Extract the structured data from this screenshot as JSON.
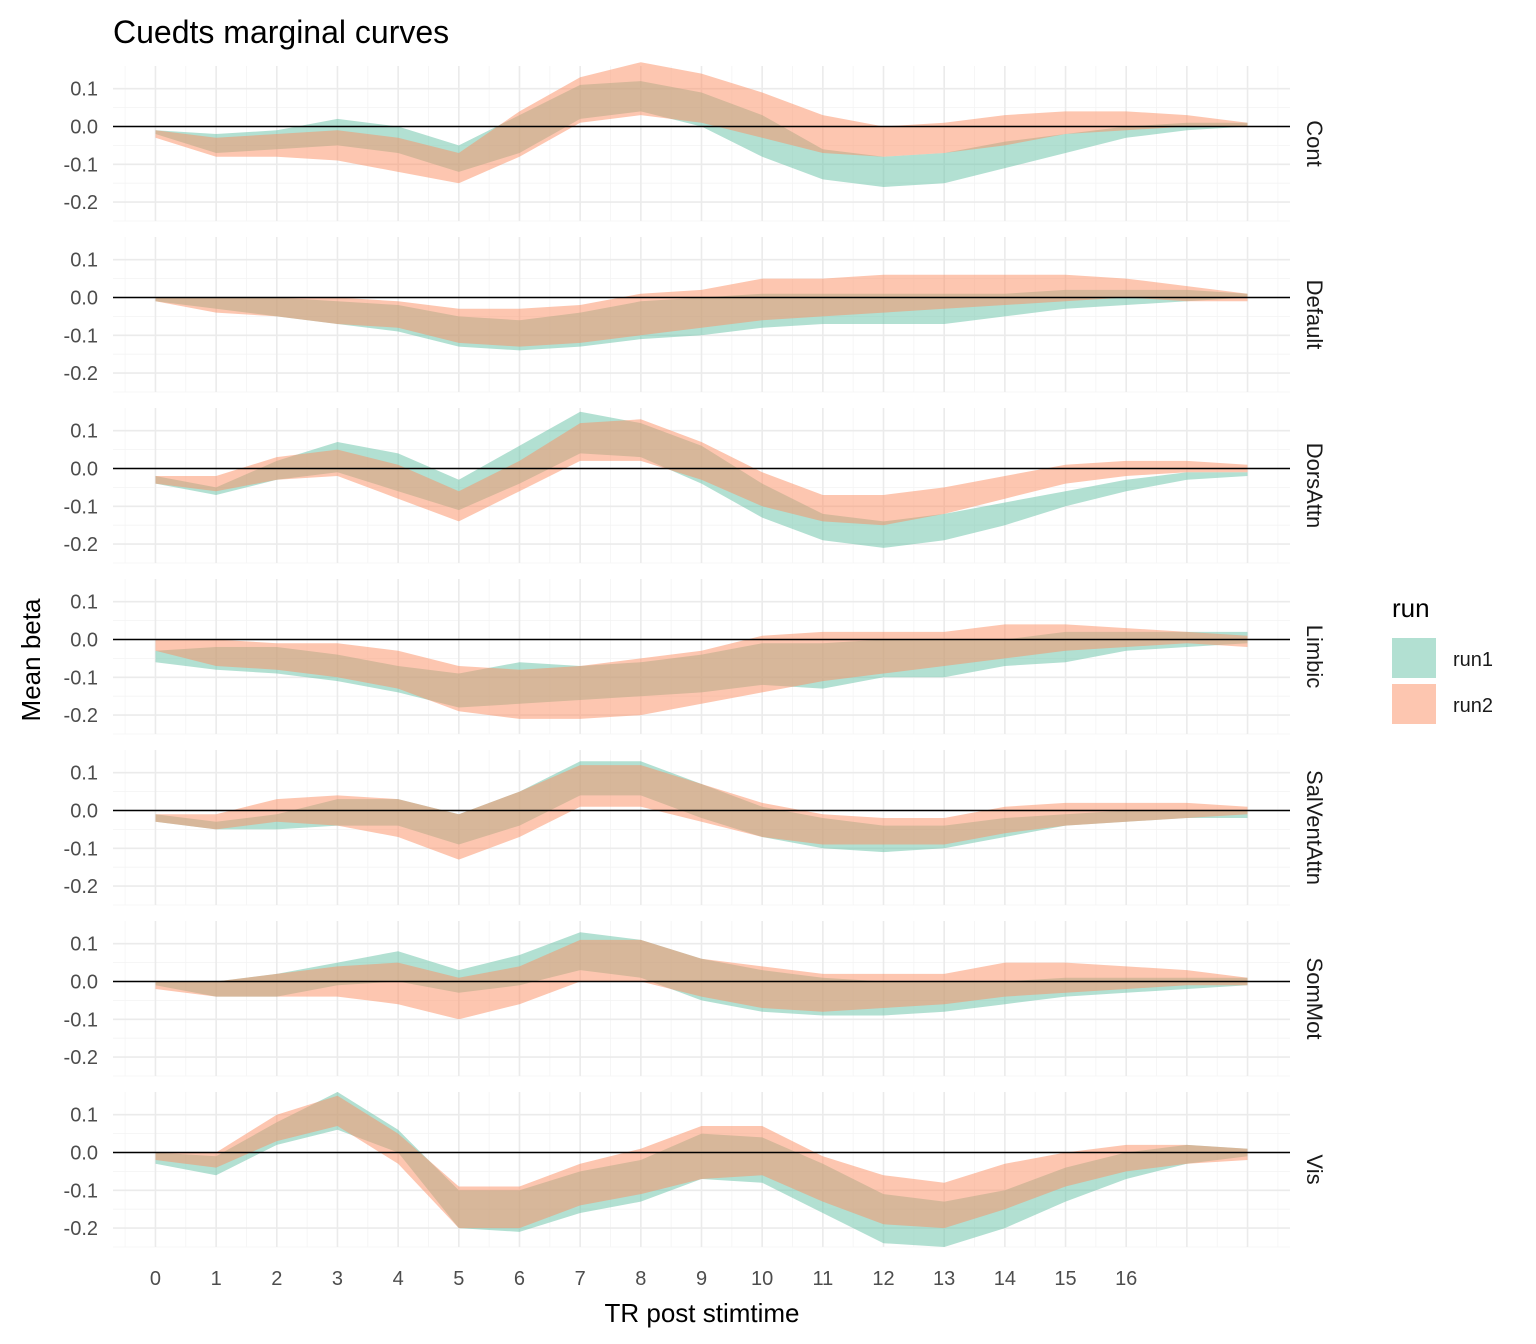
{
  "chart_data": {
    "type": "area",
    "title": "Cuedts marginal curves",
    "xlabel": "TR post stimtime",
    "ylabel": "Mean beta",
    "x": [
      0,
      1,
      2,
      3,
      4,
      5,
      6,
      7,
      8,
      9,
      10,
      11,
      12,
      13,
      14,
      15,
      16,
      17,
      18
    ],
    "x_tick_labels": [
      "0",
      "1",
      "2",
      "3",
      "4",
      "5",
      "6",
      "7",
      "8",
      "9",
      "10",
      "11",
      "12",
      "13",
      "14",
      "15",
      "16"
    ],
    "xlim": [
      -0.7,
      18.7
    ],
    "ylim": [
      -0.25,
      0.16
    ],
    "y_ticks": [
      0.1,
      0.0,
      -0.1,
      -0.2
    ],
    "y_tick_labels": [
      "0.1",
      "0.0",
      "-0.1",
      "-0.2"
    ],
    "grid": true,
    "hline": 0,
    "legend": {
      "title": "run",
      "position": "right",
      "entries": [
        {
          "name": "run1",
          "color": "#66C2A5"
        },
        {
          "name": "run2",
          "color": "#FC8D62"
        }
      ]
    },
    "fill_opacity": 0.5,
    "facets": [
      {
        "label": "Cont",
        "run1": {
          "lower": [
            -0.02,
            -0.07,
            -0.06,
            -0.05,
            -0.07,
            -0.12,
            -0.07,
            0.02,
            0.04,
            0.0,
            -0.08,
            -0.14,
            -0.16,
            -0.15,
            -0.11,
            -0.07,
            -0.03,
            -0.01,
            0.0
          ],
          "upper": [
            -0.01,
            -0.02,
            -0.01,
            0.02,
            0.0,
            -0.05,
            0.03,
            0.11,
            0.12,
            0.09,
            0.03,
            -0.06,
            -0.08,
            -0.07,
            -0.04,
            -0.02,
            0.0,
            0.01,
            0.01
          ]
        },
        "run2": {
          "lower": [
            -0.03,
            -0.08,
            -0.08,
            -0.09,
            -0.12,
            -0.15,
            -0.08,
            0.01,
            0.03,
            0.01,
            -0.03,
            -0.07,
            -0.08,
            -0.07,
            -0.05,
            -0.02,
            -0.01,
            0.0,
            0.0
          ],
          "upper": [
            -0.01,
            -0.03,
            -0.02,
            -0.01,
            -0.03,
            -0.07,
            0.04,
            0.13,
            0.17,
            0.14,
            0.09,
            0.03,
            0.0,
            0.01,
            0.03,
            0.04,
            0.04,
            0.03,
            0.01
          ]
        }
      },
      {
        "label": "Default",
        "run1": {
          "lower": [
            -0.01,
            -0.03,
            -0.05,
            -0.07,
            -0.09,
            -0.13,
            -0.14,
            -0.13,
            -0.11,
            -0.1,
            -0.08,
            -0.07,
            -0.07,
            -0.07,
            -0.05,
            -0.03,
            -0.02,
            -0.01,
            0.0
          ],
          "upper": [
            0.0,
            0.0,
            0.0,
            -0.01,
            -0.02,
            -0.05,
            -0.06,
            -0.04,
            -0.01,
            0.0,
            0.01,
            0.01,
            0.01,
            0.01,
            0.01,
            0.02,
            0.02,
            0.02,
            0.01
          ]
        },
        "run2": {
          "lower": [
            -0.01,
            -0.04,
            -0.05,
            -0.07,
            -0.08,
            -0.12,
            -0.13,
            -0.12,
            -0.1,
            -0.08,
            -0.06,
            -0.05,
            -0.04,
            -0.03,
            -0.02,
            -0.01,
            0.0,
            -0.01,
            -0.01
          ],
          "upper": [
            0.0,
            0.0,
            0.0,
            0.0,
            -0.01,
            -0.03,
            -0.03,
            -0.02,
            0.01,
            0.02,
            0.05,
            0.05,
            0.06,
            0.06,
            0.06,
            0.06,
            0.05,
            0.03,
            0.01
          ]
        }
      },
      {
        "label": "DorsAttn",
        "run1": {
          "lower": [
            -0.04,
            -0.07,
            -0.03,
            -0.01,
            -0.06,
            -0.11,
            -0.04,
            0.04,
            0.03,
            -0.04,
            -0.13,
            -0.19,
            -0.21,
            -0.19,
            -0.15,
            -0.1,
            -0.06,
            -0.03,
            -0.02
          ],
          "upper": [
            -0.02,
            -0.05,
            0.02,
            0.07,
            0.04,
            -0.03,
            0.06,
            0.15,
            0.12,
            0.06,
            -0.04,
            -0.12,
            -0.14,
            -0.12,
            -0.09,
            -0.06,
            -0.03,
            -0.01,
            -0.01
          ]
        },
        "run2": {
          "lower": [
            -0.04,
            -0.06,
            -0.03,
            -0.02,
            -0.08,
            -0.14,
            -0.06,
            0.02,
            0.02,
            -0.03,
            -0.1,
            -0.14,
            -0.15,
            -0.12,
            -0.08,
            -0.04,
            -0.02,
            -0.01,
            -0.01
          ],
          "upper": [
            -0.02,
            -0.02,
            0.03,
            0.05,
            0.01,
            -0.06,
            0.02,
            0.12,
            0.13,
            0.07,
            -0.01,
            -0.07,
            -0.07,
            -0.05,
            -0.02,
            0.01,
            0.02,
            0.02,
            0.01
          ]
        }
      },
      {
        "label": "Limbic",
        "run1": {
          "lower": [
            -0.06,
            -0.08,
            -0.09,
            -0.11,
            -0.14,
            -0.18,
            -0.17,
            -0.16,
            -0.15,
            -0.14,
            -0.12,
            -0.13,
            -0.1,
            -0.1,
            -0.07,
            -0.06,
            -0.03,
            -0.02,
            -0.01
          ],
          "upper": [
            -0.03,
            -0.02,
            -0.02,
            -0.04,
            -0.07,
            -0.09,
            -0.06,
            -0.07,
            -0.06,
            -0.04,
            -0.01,
            -0.01,
            0.0,
            0.0,
            0.0,
            0.02,
            0.02,
            0.02,
            0.02
          ]
        },
        "run2": {
          "lower": [
            -0.03,
            -0.07,
            -0.08,
            -0.1,
            -0.13,
            -0.19,
            -0.21,
            -0.21,
            -0.2,
            -0.17,
            -0.14,
            -0.11,
            -0.09,
            -0.07,
            -0.05,
            -0.03,
            -0.02,
            -0.01,
            -0.02
          ],
          "upper": [
            0.0,
            0.0,
            -0.01,
            -0.01,
            -0.03,
            -0.07,
            -0.08,
            -0.07,
            -0.05,
            -0.03,
            0.01,
            0.02,
            0.02,
            0.02,
            0.04,
            0.04,
            0.03,
            0.02,
            0.01
          ]
        }
      },
      {
        "label": "SalVentAttn",
        "run1": {
          "lower": [
            -0.03,
            -0.05,
            -0.05,
            -0.04,
            -0.04,
            -0.09,
            -0.04,
            0.04,
            0.04,
            -0.02,
            -0.07,
            -0.1,
            -0.11,
            -0.1,
            -0.07,
            -0.04,
            -0.03,
            -0.02,
            -0.02
          ],
          "upper": [
            -0.01,
            -0.03,
            -0.01,
            0.03,
            0.03,
            -0.01,
            0.05,
            0.13,
            0.13,
            0.07,
            0.01,
            -0.02,
            -0.04,
            -0.04,
            -0.02,
            -0.01,
            0.0,
            0.0,
            0.0
          ]
        },
        "run2": {
          "lower": [
            -0.03,
            -0.05,
            -0.03,
            -0.04,
            -0.07,
            -0.13,
            -0.07,
            0.01,
            0.01,
            -0.03,
            -0.07,
            -0.09,
            -0.09,
            -0.09,
            -0.06,
            -0.04,
            -0.03,
            -0.02,
            -0.01
          ],
          "upper": [
            -0.01,
            -0.01,
            0.03,
            0.04,
            0.03,
            -0.01,
            0.05,
            0.12,
            0.12,
            0.07,
            0.02,
            -0.01,
            -0.02,
            -0.02,
            0.01,
            0.02,
            0.02,
            0.02,
            0.01
          ]
        }
      },
      {
        "label": "SomMot",
        "run1": {
          "lower": [
            -0.01,
            -0.04,
            -0.04,
            -0.01,
            0.0,
            -0.03,
            -0.01,
            0.03,
            0.01,
            -0.05,
            -0.08,
            -0.09,
            -0.09,
            -0.08,
            -0.06,
            -0.04,
            -0.03,
            -0.02,
            -0.01
          ],
          "upper": [
            0.0,
            0.0,
            0.02,
            0.05,
            0.08,
            0.03,
            0.07,
            0.13,
            0.11,
            0.06,
            0.03,
            0.01,
            0.0,
            0.0,
            0.0,
            0.01,
            0.01,
            0.01,
            0.01
          ]
        },
        "run2": {
          "lower": [
            -0.02,
            -0.04,
            -0.04,
            -0.04,
            -0.06,
            -0.1,
            -0.06,
            0.0,
            0.0,
            -0.04,
            -0.07,
            -0.08,
            -0.07,
            -0.06,
            -0.04,
            -0.03,
            -0.02,
            -0.01,
            -0.01
          ],
          "upper": [
            0.0,
            0.0,
            0.02,
            0.04,
            0.05,
            0.01,
            0.04,
            0.11,
            0.11,
            0.06,
            0.04,
            0.02,
            0.02,
            0.02,
            0.05,
            0.05,
            0.04,
            0.03,
            0.01
          ]
        }
      },
      {
        "label": "Vis",
        "run1": {
          "lower": [
            -0.03,
            -0.06,
            0.02,
            0.06,
            0.0,
            -0.2,
            -0.21,
            -0.16,
            -0.13,
            -0.07,
            -0.08,
            -0.16,
            -0.24,
            -0.25,
            -0.2,
            -0.13,
            -0.07,
            -0.03,
            -0.01
          ],
          "upper": [
            0.0,
            -0.01,
            0.08,
            0.16,
            0.06,
            -0.1,
            -0.1,
            -0.05,
            -0.02,
            0.05,
            0.04,
            -0.03,
            -0.11,
            -0.13,
            -0.1,
            -0.04,
            0.0,
            0.02,
            0.01
          ]
        },
        "run2": {
          "lower": [
            -0.02,
            -0.04,
            0.03,
            0.07,
            -0.03,
            -0.2,
            -0.2,
            -0.14,
            -0.11,
            -0.07,
            -0.06,
            -0.13,
            -0.19,
            -0.2,
            -0.15,
            -0.09,
            -0.05,
            -0.03,
            -0.02
          ],
          "upper": [
            0.0,
            0.0,
            0.1,
            0.15,
            0.05,
            -0.09,
            -0.09,
            -0.03,
            0.01,
            0.07,
            0.07,
            -0.01,
            -0.06,
            -0.08,
            -0.03,
            0.0,
            0.02,
            0.02,
            0.01
          ]
        }
      }
    ]
  }
}
